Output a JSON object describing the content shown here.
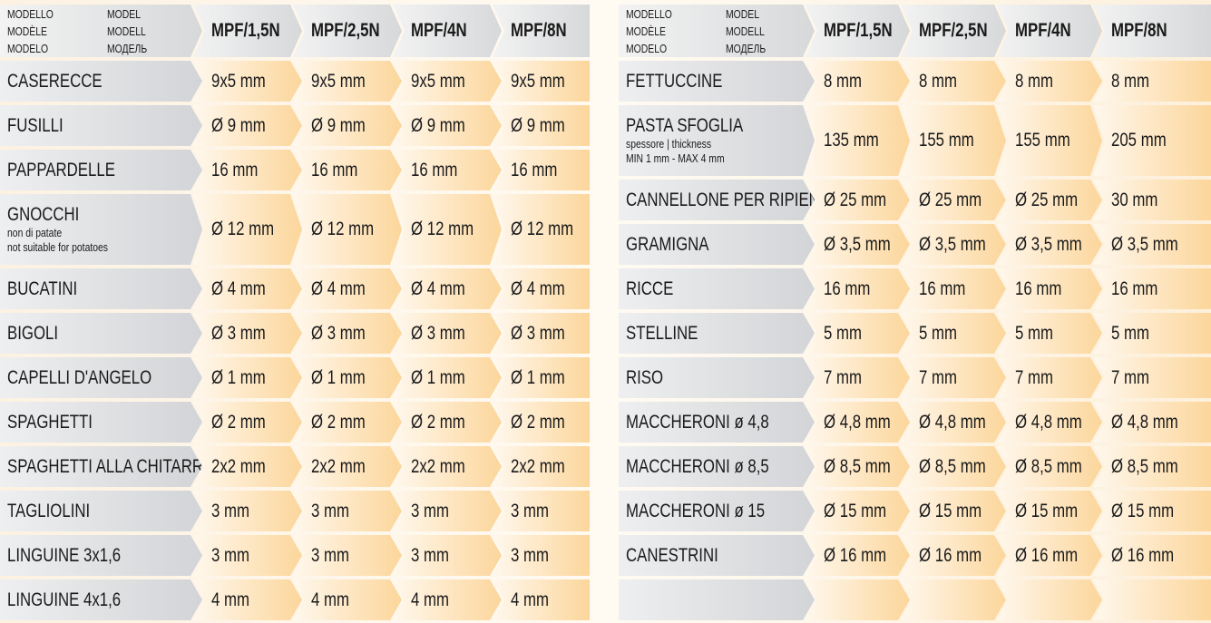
{
  "header_labels": {
    "col1": [
      "MODELLO",
      "MODÈLE",
      "MODELO"
    ],
    "col2": [
      "MODEL",
      "MODELL",
      "МОДЕЛЬ"
    ]
  },
  "models": [
    "MPF/1,5N",
    "MPF/2,5N",
    "MPF/4N",
    "MPF/8N"
  ],
  "colors": {
    "label_bg": "#d2d4d7",
    "value_bg": "#fcd69b",
    "page_bg": "#fdf2e2"
  },
  "tables": [
    {
      "rows": [
        {
          "name": "CASERECCE",
          "sub": [],
          "values": [
            "9x5 mm",
            "9x5 mm",
            "9x5 mm",
            "9x5 mm"
          ]
        },
        {
          "name": "FUSILLI",
          "sub": [],
          "values": [
            "Ø 9 mm",
            "Ø 9 mm",
            "Ø 9 mm",
            "Ø 9 mm"
          ]
        },
        {
          "name": "PAPPARDELLE",
          "sub": [],
          "values": [
            "16 mm",
            "16 mm",
            "16 mm",
            "16 mm"
          ]
        },
        {
          "name": "GNOCCHI",
          "sub": [
            "non di patate",
            "not suitable for potatoes"
          ],
          "values": [
            "Ø 12 mm",
            "Ø 12 mm",
            "Ø 12 mm",
            "Ø 12 mm"
          ]
        },
        {
          "name": "BUCATINI",
          "sub": [],
          "values": [
            "Ø 4 mm",
            "Ø 4 mm",
            "Ø 4 mm",
            "Ø 4 mm"
          ]
        },
        {
          "name": "BIGOLI",
          "sub": [],
          "values": [
            "Ø 3 mm",
            "Ø 3 mm",
            "Ø 3 mm",
            "Ø 3 mm"
          ]
        },
        {
          "name": "CAPELLI D'ANGELO",
          "sub": [],
          "values": [
            "Ø 1 mm",
            "Ø 1 mm",
            "Ø 1 mm",
            "Ø 1 mm"
          ]
        },
        {
          "name": "SPAGHETTI",
          "sub": [],
          "values": [
            "Ø 2 mm",
            "Ø 2 mm",
            "Ø 2 mm",
            "Ø 2 mm"
          ]
        },
        {
          "name": "SPAGHETTI ALLA CHITARRA",
          "sub": [],
          "values": [
            "2x2 mm",
            "2x2 mm",
            "2x2 mm",
            "2x2 mm"
          ]
        },
        {
          "name": "TAGLIOLINI",
          "sub": [],
          "values": [
            "3 mm",
            "3 mm",
            "3 mm",
            "3 mm"
          ]
        },
        {
          "name": "LINGUINE 3x1,6",
          "sub": [],
          "values": [
            "3 mm",
            "3 mm",
            "3 mm",
            "3 mm"
          ]
        },
        {
          "name": "LINGUINE 4x1,6",
          "sub": [],
          "values": [
            "4 mm",
            "4 mm",
            "4 mm",
            "4 mm"
          ]
        }
      ]
    },
    {
      "rows": [
        {
          "name": "FETTUCCINE",
          "sub": [],
          "values": [
            "8 mm",
            "8 mm",
            "8 mm",
            "8 mm"
          ]
        },
        {
          "name": "PASTA SFOGLIA",
          "sub": [
            "spessore | thickness",
            "MIN 1 mm - MAX 4 mm"
          ],
          "values": [
            "135 mm",
            "155 mm",
            "155 mm",
            "205 mm"
          ]
        },
        {
          "name": "CANNELLONE PER RIPIENO",
          "sub": [],
          "values": [
            "Ø 25 mm",
            "Ø 25 mm",
            "Ø 25 mm",
            "30 mm"
          ]
        },
        {
          "name": "GRAMIGNA",
          "sub": [],
          "values": [
            "Ø 3,5 mm",
            "Ø 3,5 mm",
            "Ø 3,5 mm",
            "Ø 3,5 mm"
          ]
        },
        {
          "name": "RICCE",
          "sub": [],
          "values": [
            "16 mm",
            "16 mm",
            "16 mm",
            "16 mm"
          ]
        },
        {
          "name": "STELLINE",
          "sub": [],
          "values": [
            "5 mm",
            "5 mm",
            "5 mm",
            "5 mm"
          ]
        },
        {
          "name": "RISO",
          "sub": [],
          "values": [
            "7 mm",
            "7 mm",
            "7 mm",
            "7 mm"
          ]
        },
        {
          "name": "MACCHERONI ø 4,8",
          "sub": [],
          "values": [
            "Ø 4,8 mm",
            "Ø 4,8 mm",
            "Ø 4,8 mm",
            "Ø 4,8 mm"
          ]
        },
        {
          "name": "MACCHERONI ø 8,5",
          "sub": [],
          "values": [
            "Ø 8,5 mm",
            "Ø 8,5 mm",
            "Ø 8,5 mm",
            "Ø 8,5 mm"
          ]
        },
        {
          "name": "MACCHERONI ø 15",
          "sub": [],
          "values": [
            "Ø 15 mm",
            "Ø 15 mm",
            "Ø 15 mm",
            "Ø 15 mm"
          ]
        },
        {
          "name": "CANESTRINI",
          "sub": [],
          "values": [
            "Ø 16 mm",
            "Ø 16 mm",
            "Ø 16 mm",
            "Ø 16 mm"
          ]
        },
        {
          "name": "",
          "sub": [],
          "values": [
            "",
            "",
            "",
            ""
          ]
        }
      ]
    }
  ]
}
